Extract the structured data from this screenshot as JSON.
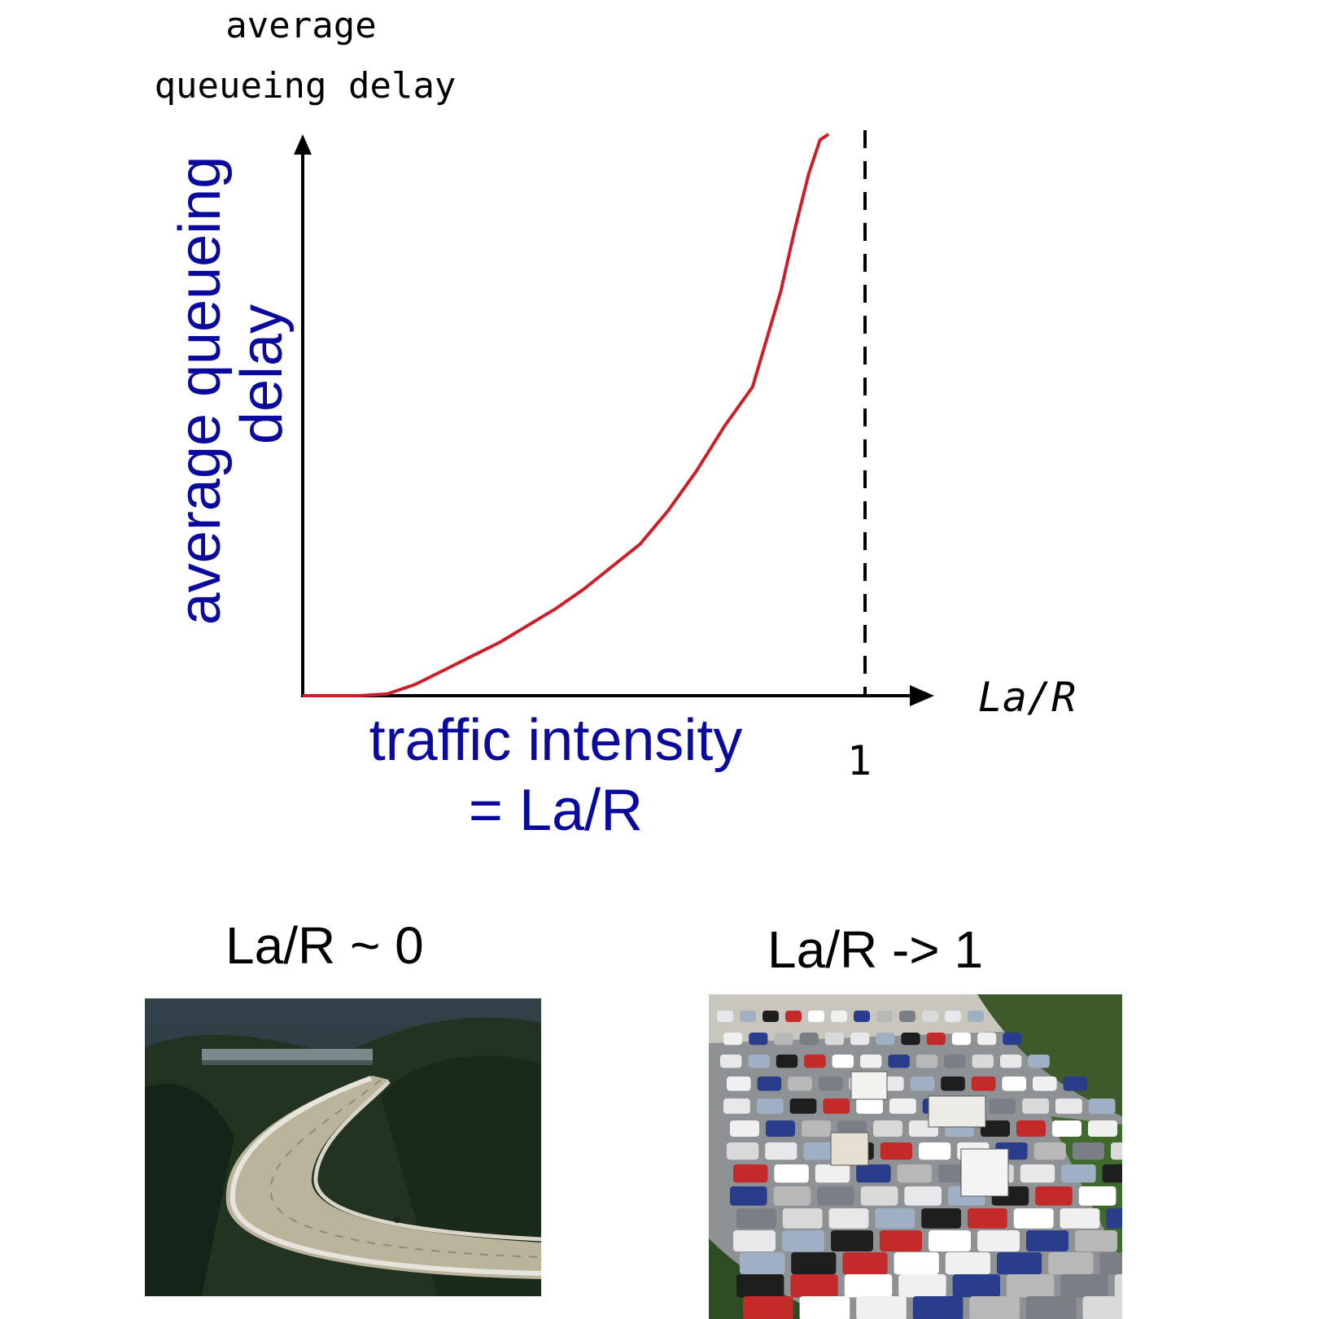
{
  "chart_data": {
    "type": "line",
    "title": "",
    "ylabel_top": [
      "average",
      "queueing delay"
    ],
    "ylabel_side": [
      "average  queueing",
      "delay"
    ],
    "xlabel": [
      "traffic intensity",
      "= La/R"
    ],
    "x_axis_end_label": "La/R",
    "x_tick_labels": [
      "1"
    ],
    "asymptote_x": 1,
    "xlim": [
      0,
      1.12
    ],
    "ylim": [
      0,
      1
    ],
    "grid": false,
    "series": [
      {
        "color": "#cc1f2a",
        "x": [
          0.0,
          0.05,
          0.1,
          0.15,
          0.2,
          0.25,
          0.3,
          0.35,
          0.4,
          0.45,
          0.5,
          0.55,
          0.6,
          0.65,
          0.7,
          0.75,
          0.8,
          0.85,
          0.875,
          0.9,
          0.92,
          0.935
        ],
        "y": [
          0.0,
          0.0,
          0.0,
          0.003,
          0.02,
          0.045,
          0.07,
          0.095,
          0.125,
          0.155,
          0.19,
          0.23,
          0.27,
          0.33,
          0.4,
          0.48,
          0.55,
          0.72,
          0.83,
          0.93,
          0.99,
          1.0
        ]
      }
    ]
  },
  "captions": {
    "left": "La/R ~ 0",
    "right": "La/R -> 1"
  },
  "photos": {
    "left": "empty-highway-photo",
    "right": "congested-highway-photo"
  },
  "colors": {
    "label_blue": "#0a0a9e",
    "curve_red": "#cc1f2a",
    "axis": "#000000"
  }
}
